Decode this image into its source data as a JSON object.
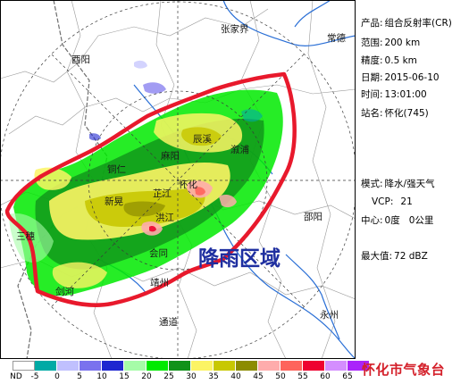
{
  "map": {
    "annotation": "降雨区域",
    "place_names": {
      "zhangjiajie": "张家界",
      "changde": "常德",
      "youyang": "酉阳",
      "chenxi": "辰溪",
      "xupu": "溆浦",
      "mayang": "麻阳",
      "tongren": "铜仁",
      "xinhuang": "新晃",
      "zhijiang": "芷江",
      "huaihua": "怀化",
      "hongjiang": "洪江",
      "shaoyang": "邵阳",
      "sanhui": "三穗",
      "huitong": "会同",
      "jingzhou": "靖州",
      "jianhe": "剑河",
      "tongdao": "通道",
      "yongzhou": "永州"
    },
    "colors": {
      "rain_outline": "#e8192c",
      "annotation": "#1f2fa0"
    }
  },
  "info": {
    "product_label": "产品:",
    "product_value": "组合反射率(CR)",
    "range_label": "范围:",
    "range_value": "200 km",
    "precision_label": "精度:",
    "precision_value": "0.5 km",
    "date_label": "日期:",
    "date_value": "2015-06-10",
    "time_label": "时间:",
    "time_value": "13:01:00",
    "station_label": "站名:",
    "station_value": "怀化(745)",
    "mode_label": "模式:",
    "mode_value": "降水/强天气",
    "vcp_label": "VCP:",
    "vcp_value": "21",
    "center_label": "中心:",
    "center_value": "0度   0公里",
    "max_label": "最大值:",
    "max_value": "72 dBZ"
  },
  "legend": {
    "labels": [
      "ND",
      "-5",
      "0",
      "5",
      "10",
      "15",
      "20",
      "25",
      "30",
      "35",
      "40",
      "45",
      "50",
      "55",
      "60",
      "65"
    ],
    "colors": [
      "#ffffff",
      "#00aaa5",
      "#c0c0fe",
      "#7a72ee",
      "#1e26d0",
      "#a6fca8",
      "#00ea00",
      "#10921a",
      "#fcf464",
      "#c8c802",
      "#8c8c00",
      "#feacac",
      "#fe645c",
      "#ee0230",
      "#d48efe",
      "#aa24fa"
    ]
  },
  "footer": {
    "org": "怀化市气象台"
  }
}
